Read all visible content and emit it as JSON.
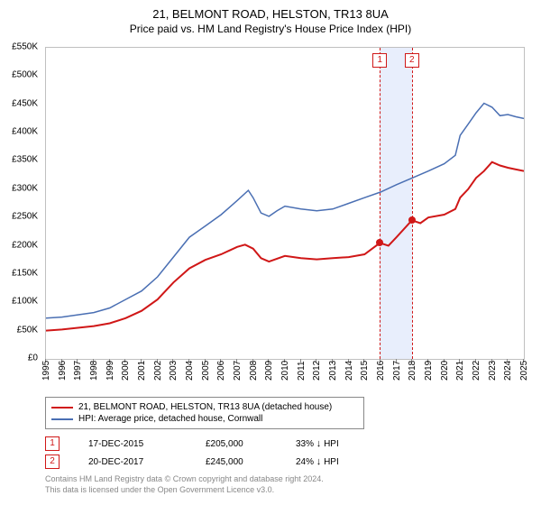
{
  "title": "21, BELMONT ROAD, HELSTON, TR13 8UA",
  "subtitle": "Price paid vs. HM Land Registry's House Price Index (HPI)",
  "chart": {
    "type": "line",
    "ylim": [
      0,
      550
    ],
    "ytick_step": 50,
    "y_prefix": "£",
    "y_suffix": "K",
    "x_years": [
      1995,
      1996,
      1997,
      1998,
      1999,
      2000,
      2001,
      2002,
      2003,
      2004,
      2005,
      2006,
      2007,
      2008,
      2009,
      2010,
      2011,
      2012,
      2013,
      2014,
      2015,
      2016,
      2017,
      2018,
      2019,
      2020,
      2021,
      2022,
      2023,
      2024,
      2025
    ],
    "highlight_band": {
      "x_start": 2015.96,
      "x_end": 2017.97,
      "color": "#e8eefc"
    },
    "markers": [
      {
        "num": "1",
        "x": 2015.96
      },
      {
        "num": "2",
        "x": 2017.97
      }
    ],
    "series": [
      {
        "name": "price_paid",
        "color": "#d01717",
        "width": 2,
        "points": [
          [
            1995,
            50
          ],
          [
            1996,
            52
          ],
          [
            1997,
            55
          ],
          [
            1998,
            58
          ],
          [
            1999,
            63
          ],
          [
            2000,
            72
          ],
          [
            2001,
            85
          ],
          [
            2002,
            105
          ],
          [
            2003,
            135
          ],
          [
            2004,
            160
          ],
          [
            2005,
            175
          ],
          [
            2006,
            185
          ],
          [
            2007,
            198
          ],
          [
            2007.5,
            202
          ],
          [
            2008,
            195
          ],
          [
            2008.5,
            178
          ],
          [
            2009,
            172
          ],
          [
            2010,
            182
          ],
          [
            2011,
            178
          ],
          [
            2012,
            176
          ],
          [
            2013,
            178
          ],
          [
            2014,
            180
          ],
          [
            2015,
            185
          ],
          [
            2015.96,
            205
          ],
          [
            2016.5,
            200
          ],
          [
            2017,
            215
          ],
          [
            2017.97,
            245
          ],
          [
            2018.5,
            240
          ],
          [
            2019,
            250
          ],
          [
            2020,
            255
          ],
          [
            2020.7,
            265
          ],
          [
            2021,
            285
          ],
          [
            2021.5,
            300
          ],
          [
            2022,
            320
          ],
          [
            2022.5,
            332
          ],
          [
            2023,
            348
          ],
          [
            2023.5,
            342
          ],
          [
            2024,
            338
          ],
          [
            2024.5,
            335
          ],
          [
            2025,
            332
          ]
        ]
      },
      {
        "name": "hpi",
        "color": "#4a6fb3",
        "width": 1.5,
        "points": [
          [
            1995,
            72
          ],
          [
            1996,
            74
          ],
          [
            1997,
            78
          ],
          [
            1998,
            82
          ],
          [
            1999,
            90
          ],
          [
            2000,
            105
          ],
          [
            2001,
            120
          ],
          [
            2002,
            145
          ],
          [
            2003,
            180
          ],
          [
            2004,
            215
          ],
          [
            2005,
            235
          ],
          [
            2006,
            255
          ],
          [
            2007,
            280
          ],
          [
            2007.7,
            298
          ],
          [
            2008,
            285
          ],
          [
            2008.5,
            258
          ],
          [
            2009,
            252
          ],
          [
            2009.5,
            262
          ],
          [
            2010,
            270
          ],
          [
            2011,
            265
          ],
          [
            2012,
            262
          ],
          [
            2013,
            265
          ],
          [
            2014,
            275
          ],
          [
            2015,
            285
          ],
          [
            2016,
            295
          ],
          [
            2017,
            308
          ],
          [
            2018,
            320
          ],
          [
            2019,
            332
          ],
          [
            2020,
            345
          ],
          [
            2020.7,
            360
          ],
          [
            2021,
            395
          ],
          [
            2021.5,
            415
          ],
          [
            2022,
            435
          ],
          [
            2022.5,
            452
          ],
          [
            2023,
            445
          ],
          [
            2023.5,
            430
          ],
          [
            2024,
            432
          ],
          [
            2024.5,
            428
          ],
          [
            2025,
            425
          ]
        ]
      }
    ],
    "sale_points": [
      {
        "x": 2015.96,
        "y": 205
      },
      {
        "x": 2017.97,
        "y": 245
      }
    ],
    "border_color": "#c0c0c0",
    "background_color": "#ffffff"
  },
  "legend": [
    {
      "color": "#d01717",
      "label": "21, BELMONT ROAD, HELSTON, TR13 8UA (detached house)"
    },
    {
      "color": "#4a6fb3",
      "label": "HPI: Average price, detached house, Cornwall"
    }
  ],
  "sales": [
    {
      "num": "1",
      "date": "17-DEC-2015",
      "price": "£205,000",
      "pct": "33%",
      "arrow": "↓",
      "ref": "HPI"
    },
    {
      "num": "2",
      "date": "20-DEC-2017",
      "price": "£245,000",
      "pct": "24%",
      "arrow": "↓",
      "ref": "HPI"
    }
  ],
  "footer_line1": "Contains HM Land Registry data © Crown copyright and database right 2024.",
  "footer_line2": "This data is licensed under the Open Government Licence v3.0."
}
